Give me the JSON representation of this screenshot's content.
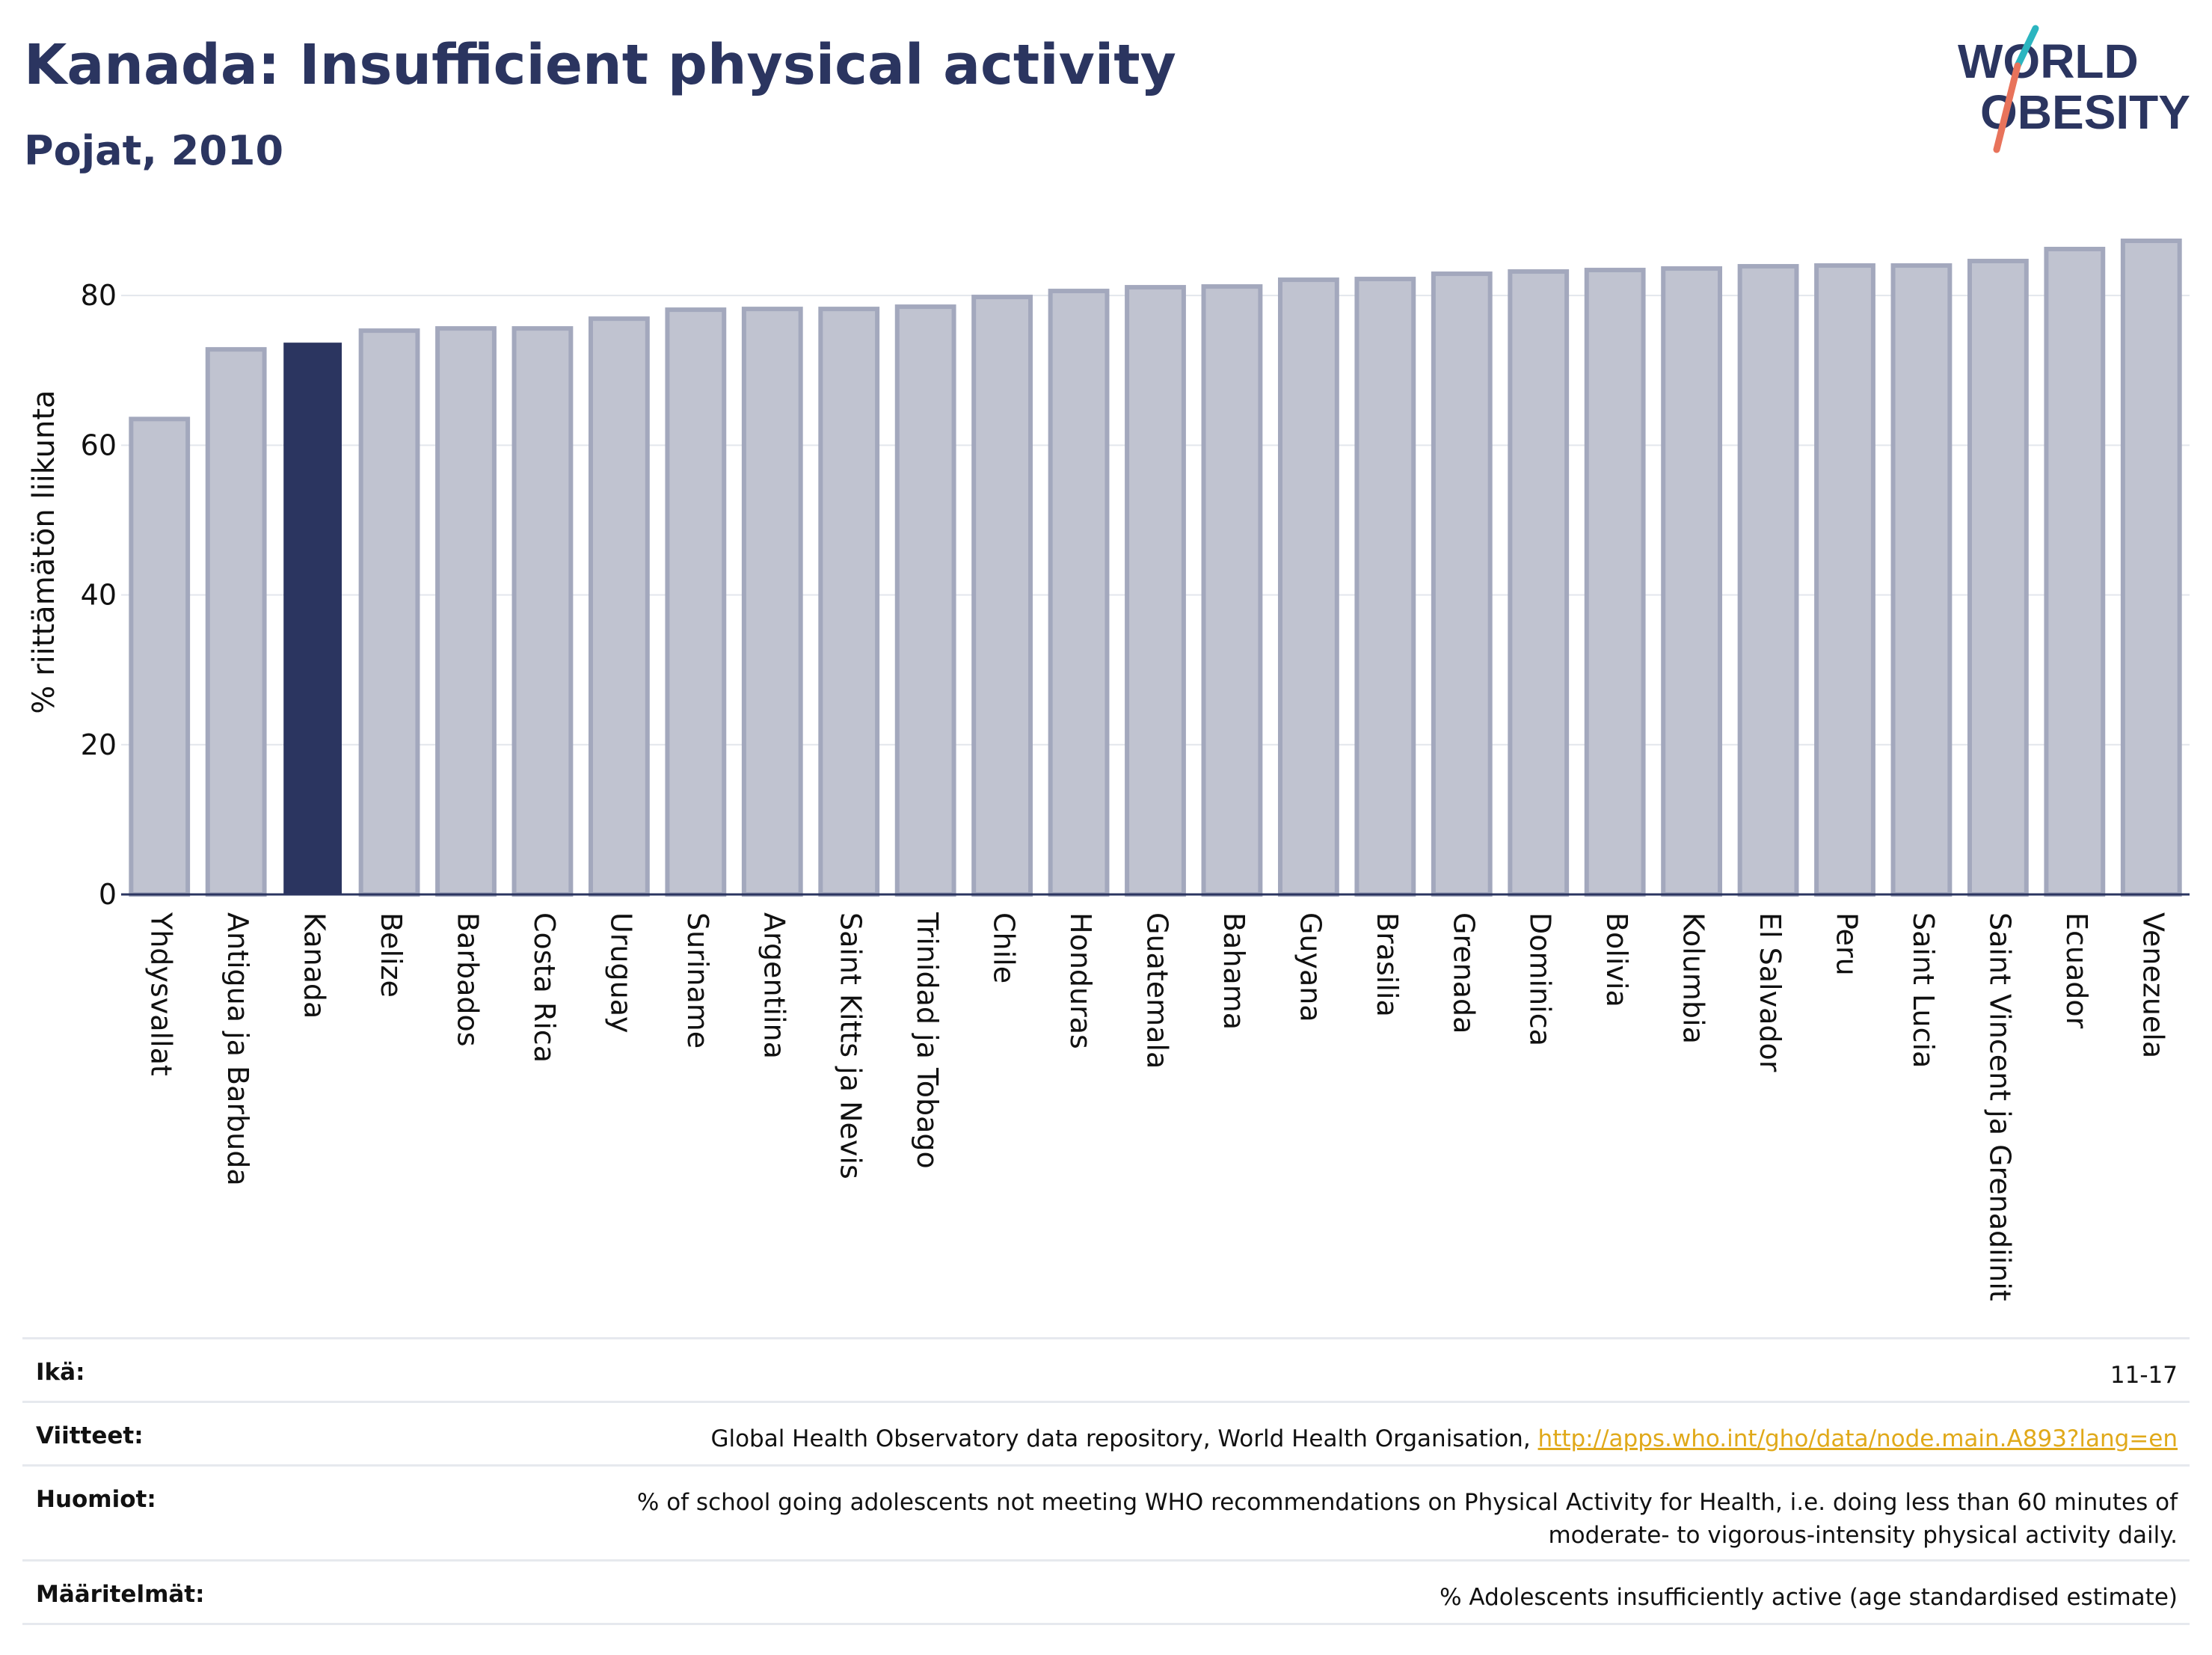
{
  "header": {
    "title": "Kanada: Insufficient physical activity",
    "subtitle": "Pojat, 2010"
  },
  "logo": {
    "line1": "WORLD",
    "line2": "OBESITY"
  },
  "colors": {
    "highlight": "#2b3560",
    "bar_fill": "#c0c3d0",
    "bar_stroke": "#a3a8bd",
    "link": "#e0a91a",
    "logo_slash_top": "#2bb5c0",
    "logo_slash_bottom": "#e8735b"
  },
  "chart_data": {
    "type": "bar",
    "ylabel": "% riittämätön liikunta",
    "ylim": [
      0,
      88
    ],
    "yticks": [
      0,
      20,
      40,
      60,
      80
    ],
    "grid": true,
    "highlight": "Kanada",
    "categories": [
      "Yhdysvallat",
      "Antigua ja Barbuda",
      "Kanada",
      "Belize",
      "Barbados",
      "Costa Rica",
      "Uruguay",
      "Suriname",
      "Argentiina",
      "Saint Kitts ja Nevis",
      "Trinidad ja Tobago",
      "Chile",
      "Honduras",
      "Guatemala",
      "Bahama",
      "Guyana",
      "Brasilia",
      "Grenada",
      "Dominica",
      "Bolivia",
      "Kolumbia",
      "El Salvador",
      "Peru",
      "Saint Lucia",
      "Saint Vincent ja Grenadiinit",
      "Ecuador",
      "Venezuela"
    ],
    "values": [
      63.5,
      72.8,
      73.6,
      75.3,
      75.6,
      75.6,
      76.9,
      78.1,
      78.2,
      78.2,
      78.5,
      79.8,
      80.6,
      81.1,
      81.2,
      82.1,
      82.2,
      82.9,
      83.2,
      83.4,
      83.6,
      83.9,
      84.0,
      84.0,
      84.6,
      86.2,
      87.3
    ]
  },
  "info": {
    "age_label": "Ikä:",
    "age_value": "11-17",
    "refs_label": "Viitteet:",
    "refs_text": "Global Health Observatory data repository, World Health Organisation, ",
    "refs_link": "http://apps.who.int/gho/data/node.main.A893?lang=en",
    "notes_label": "Huomiot:",
    "notes_line1": "% of school going adolescents not meeting WHO recommendations on Physical Activity for Health, i.e. doing less than 60 minutes of",
    "notes_line2": "moderate- to vigorous-intensity physical activity daily.",
    "defs_label": "Määritelmät:",
    "defs_value": "% Adolescents insufficiently active (age standardised estimate)"
  }
}
